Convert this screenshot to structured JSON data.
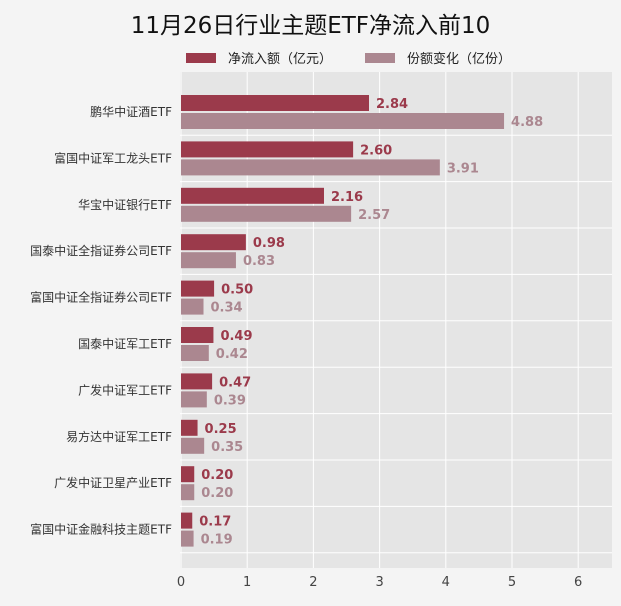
{
  "chart_data": {
    "type": "bar",
    "orientation": "horizontal",
    "title": "11月26日行业主题ETF净流入前10",
    "categories": [
      "鹏华中证酒ETF",
      "富国中证军工龙头ETF",
      "华宝中证银行ETF",
      "国泰中证全指证券公司ETF",
      "富国中证全指证券公司ETF",
      "国泰中证军工ETF",
      "广发中证军工ETF",
      "易方达中证军工ETF",
      "广发中证卫星产业ETF",
      "富国中证金融科技主题ETF"
    ],
    "series": [
      {
        "name": "净流入额（亿元）",
        "color": "#9b3a4b",
        "values": [
          2.84,
          2.6,
          2.16,
          0.98,
          0.5,
          0.49,
          0.47,
          0.25,
          0.2,
          0.17
        ],
        "labels": [
          "2.84",
          "2.60",
          "2.16",
          "0.98",
          "0.50",
          "0.49",
          "0.47",
          "0.25",
          "0.20",
          "0.17"
        ]
      },
      {
        "name": "份额变化（亿份）",
        "color": "#ab8790",
        "values": [
          4.88,
          3.91,
          2.57,
          0.83,
          0.34,
          0.42,
          0.39,
          0.35,
          0.2,
          0.19
        ],
        "labels": [
          "4.88",
          "3.91",
          "2.57",
          "0.83",
          "0.34",
          "0.42",
          "0.39",
          "0.35",
          "0.20",
          "0.19"
        ]
      }
    ],
    "xlim": [
      0,
      6.5
    ],
    "xticks": [
      "0",
      "1",
      "2",
      "3",
      "4",
      "5",
      "6"
    ],
    "grid": true,
    "legend": "top"
  }
}
